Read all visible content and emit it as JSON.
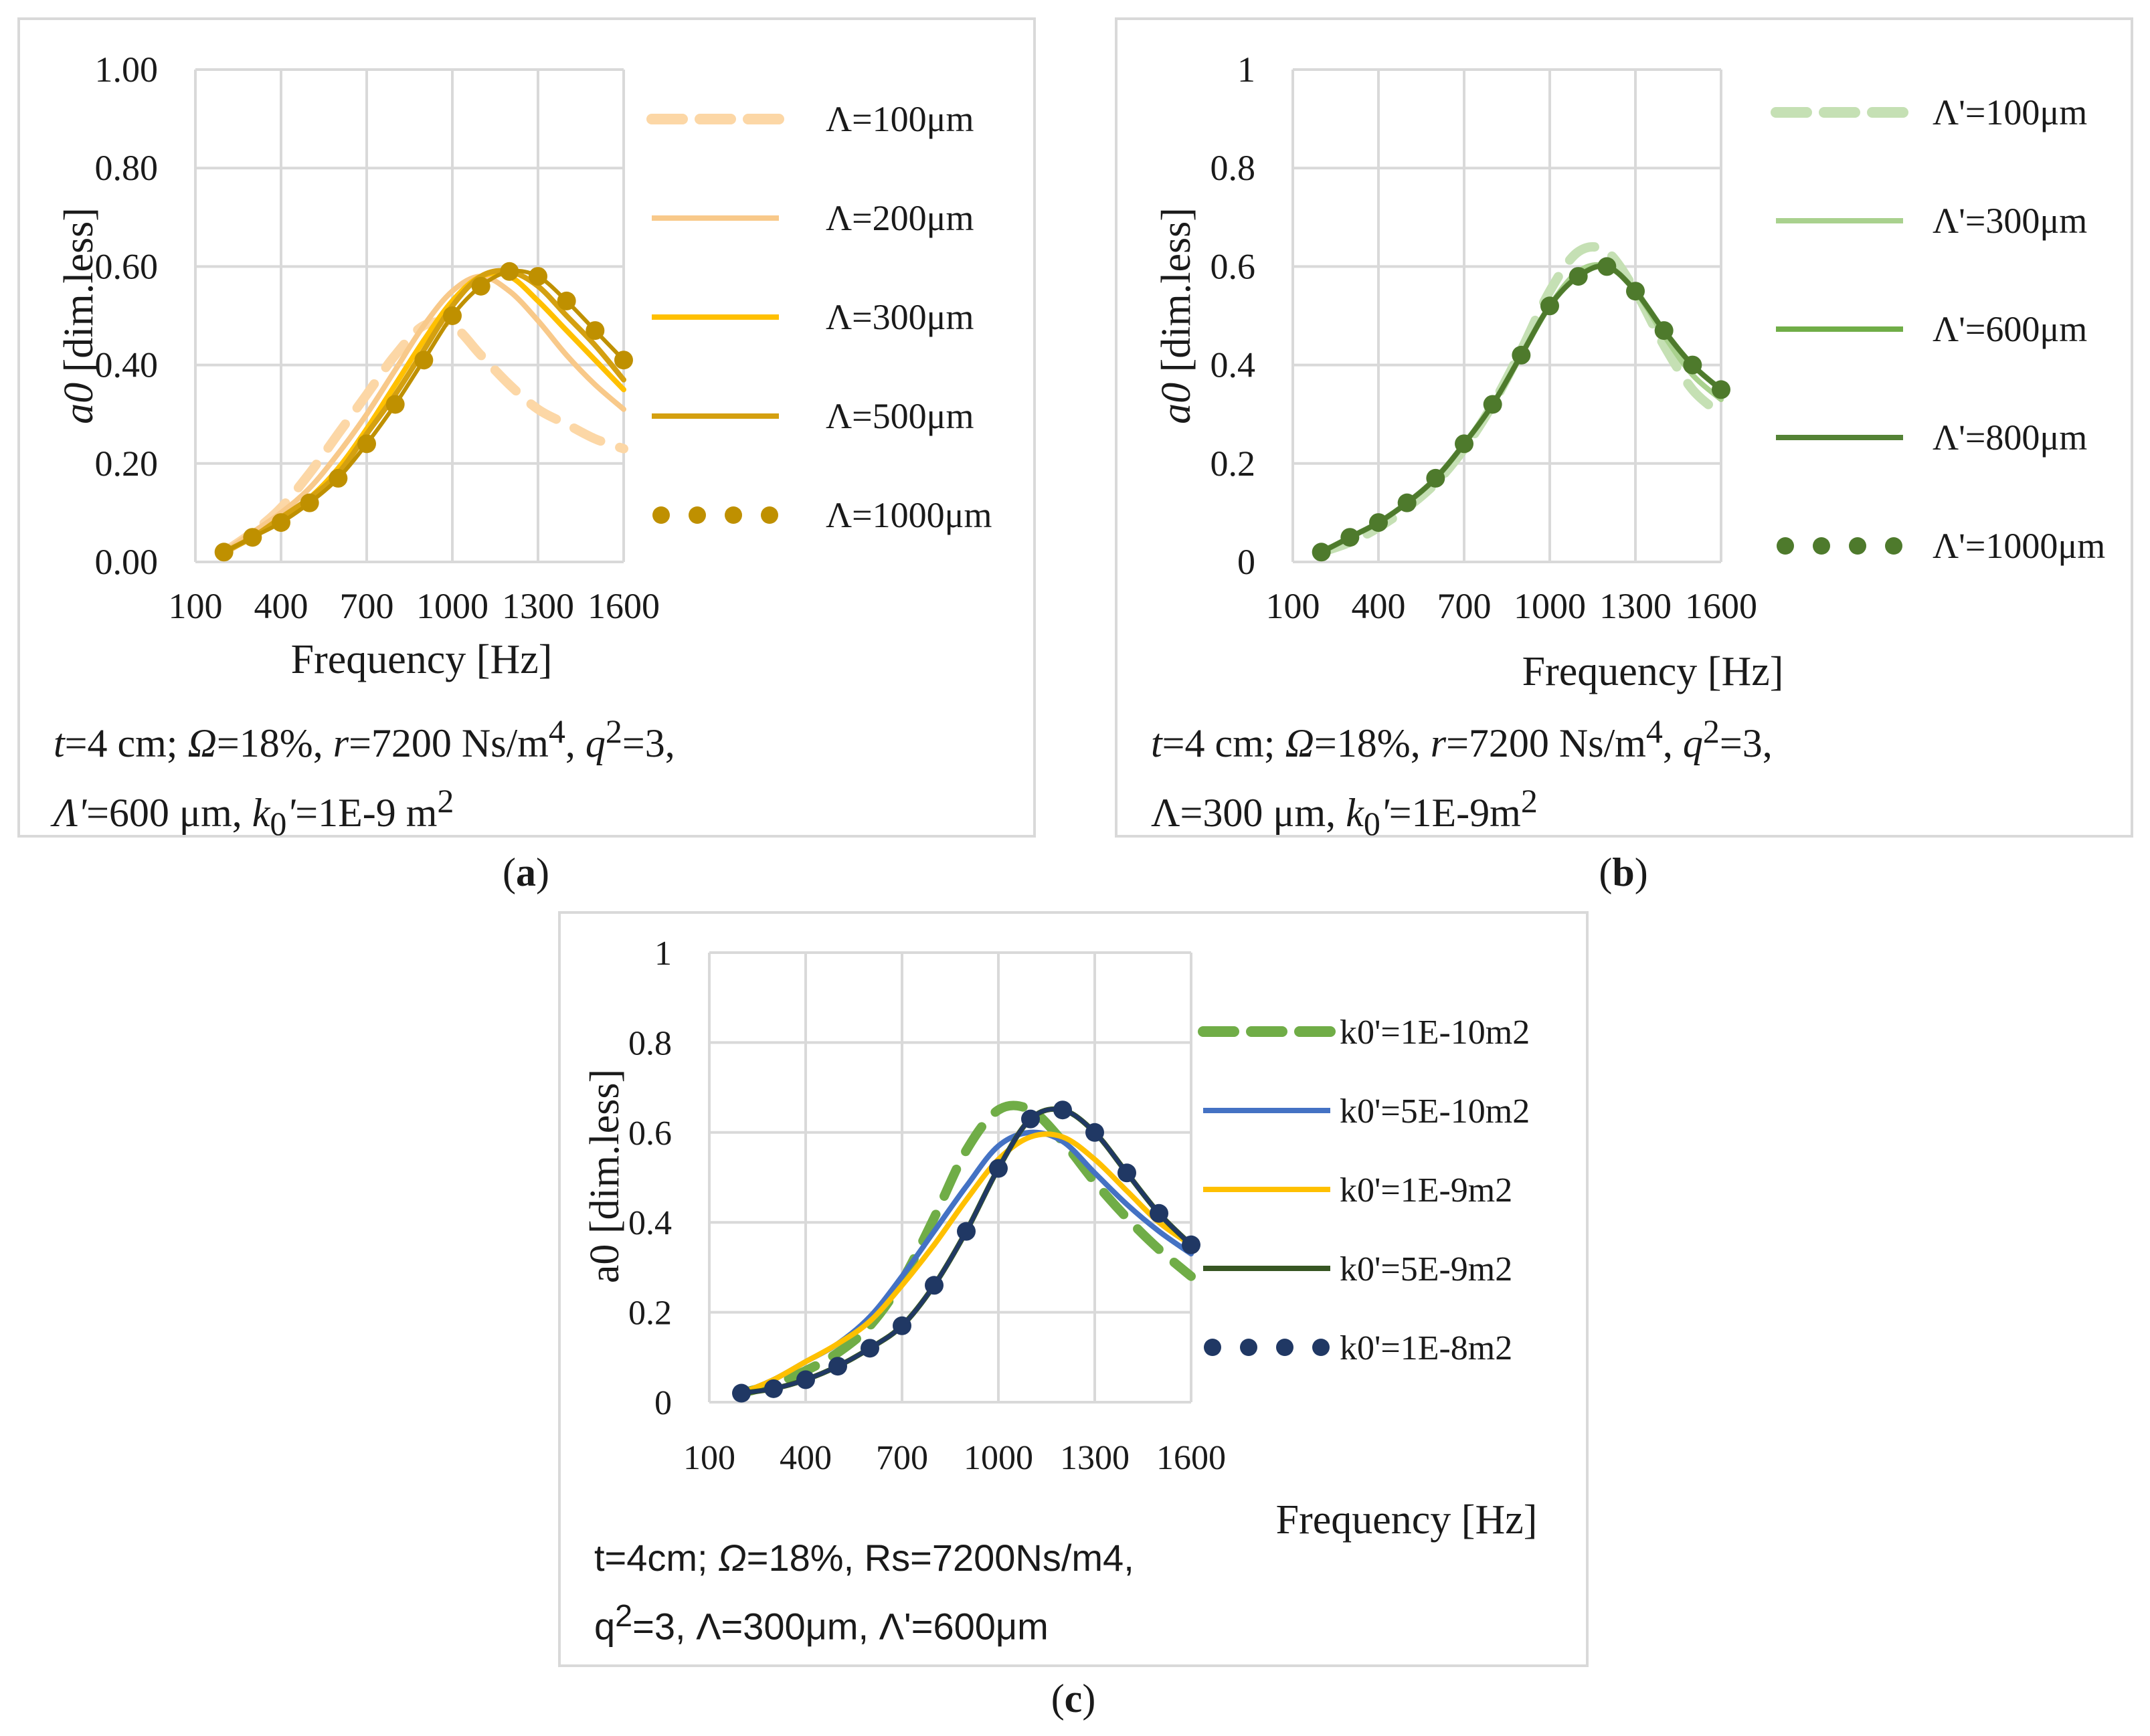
{
  "figure": {
    "labels": {
      "a": "a",
      "b": "b",
      "c": "c"
    }
  },
  "chart_data": [
    {
      "id": "a",
      "type": "line",
      "xlabel": "Frequency  [Hz]",
      "ylabel": "a0 [dim.less]",
      "xlim": [
        100,
        1600
      ],
      "ylim": [
        0,
        1
      ],
      "xticks": [
        "100",
        "400",
        "700",
        "1000",
        "1300",
        "1600"
      ],
      "yticks": [
        "0.00",
        "0.20",
        "0.40",
        "0.60",
        "0.80",
        "1.00"
      ],
      "x": [
        200,
        300,
        400,
        500,
        600,
        700,
        800,
        900,
        1000,
        1100,
        1200,
        1300,
        1400,
        1500,
        1600
      ],
      "series": [
        {
          "name": "Λ=100μm",
          "color": "#fcd7a6",
          "dash": "long",
          "values": [
            0.02,
            0.06,
            0.11,
            0.18,
            0.26,
            0.34,
            0.42,
            0.48,
            0.48,
            0.42,
            0.36,
            0.31,
            0.28,
            0.25,
            0.23
          ]
        },
        {
          "name": "Λ=200μm",
          "color": "#f8c98a",
          "dash": "solid",
          "values": [
            0.02,
            0.06,
            0.1,
            0.15,
            0.22,
            0.3,
            0.39,
            0.48,
            0.55,
            0.58,
            0.55,
            0.49,
            0.42,
            0.36,
            0.31
          ]
        },
        {
          "name": "Λ=300μm",
          "color": "#ffc000",
          "dash": "solid",
          "values": [
            0.02,
            0.05,
            0.09,
            0.13,
            0.19,
            0.27,
            0.36,
            0.45,
            0.53,
            0.58,
            0.58,
            0.53,
            0.47,
            0.41,
            0.35
          ]
        },
        {
          "name": "Λ=500μm",
          "color": "#d4a010",
          "dash": "solid",
          "values": [
            0.02,
            0.05,
            0.09,
            0.13,
            0.18,
            0.26,
            0.34,
            0.43,
            0.52,
            0.58,
            0.59,
            0.56,
            0.5,
            0.44,
            0.37
          ]
        },
        {
          "name": "Λ=1000μm",
          "color": "#bf9000",
          "dash": "dots",
          "values": [
            0.02,
            0.05,
            0.08,
            0.12,
            0.17,
            0.24,
            0.32,
            0.41,
            0.5,
            0.56,
            0.59,
            0.58,
            0.53,
            0.47,
            0.41
          ]
        }
      ],
      "caption_lines": [
        [
          "t",
          "=4 cm;  ",
          "Ω",
          "=18%, ",
          "r",
          "=7200 Ns/m",
          "4",
          ", ",
          "q",
          "2",
          "=3,"
        ],
        [
          "Λ'",
          "=600 μm, ",
          "k",
          "0",
          "'",
          "=1E-9 m",
          "2"
        ]
      ]
    },
    {
      "id": "b",
      "type": "line",
      "xlabel": "Frequency  [Hz]",
      "ylabel": "a0 [dim.less]",
      "xlim": [
        100,
        1600
      ],
      "ylim": [
        0,
        1
      ],
      "xticks": [
        "100",
        "400",
        "700",
        "1000",
        "1300",
        "1600"
      ],
      "yticks": [
        "0",
        "0.2",
        "0.4",
        "0.6",
        "0.8",
        "1"
      ],
      "x": [
        200,
        300,
        400,
        500,
        600,
        700,
        800,
        900,
        1000,
        1100,
        1200,
        1300,
        1400,
        1500,
        1600
      ],
      "series": [
        {
          "name": "Λ'=100μm",
          "color": "#c5e0b4",
          "dash": "long",
          "values": [
            0.02,
            0.04,
            0.07,
            0.11,
            0.16,
            0.23,
            0.32,
            0.43,
            0.55,
            0.63,
            0.63,
            0.55,
            0.44,
            0.35,
            0.3
          ]
        },
        {
          "name": "Λ'=300μm",
          "color": "#a9d18e",
          "dash": "solid",
          "values": [
            0.02,
            0.05,
            0.08,
            0.12,
            0.17,
            0.24,
            0.32,
            0.42,
            0.52,
            0.59,
            0.6,
            0.55,
            0.46,
            0.38,
            0.33
          ]
        },
        {
          "name": "Λ'=600μm",
          "color": "#70ad47",
          "dash": "solid",
          "values": [
            0.02,
            0.05,
            0.08,
            0.12,
            0.17,
            0.24,
            0.32,
            0.42,
            0.52,
            0.58,
            0.6,
            0.55,
            0.47,
            0.4,
            0.35
          ]
        },
        {
          "name": "Λ'=800μm",
          "color": "#548235",
          "dash": "solid",
          "values": [
            0.02,
            0.05,
            0.08,
            0.12,
            0.17,
            0.24,
            0.32,
            0.42,
            0.52,
            0.58,
            0.6,
            0.55,
            0.47,
            0.4,
            0.35
          ]
        },
        {
          "name": "Λ'=1000μm",
          "color": "#4e7a2c",
          "dash": "dots",
          "values": [
            0.02,
            0.05,
            0.08,
            0.12,
            0.17,
            0.24,
            0.32,
            0.42,
            0.52,
            0.58,
            0.6,
            0.55,
            0.47,
            0.4,
            0.35
          ]
        }
      ],
      "caption_lines": [
        [
          "t",
          "=4 cm;  ",
          "Ω",
          "=18%, ",
          "r",
          "=7200 Ns/m",
          "4",
          ", ",
          "q",
          "2",
          "=3,"
        ],
        [
          "Λ=300 μm, ",
          "k",
          "0",
          "'",
          "=1E-9m",
          "2"
        ]
      ]
    },
    {
      "id": "c",
      "type": "line",
      "xlabel": "Frequency  [Hz]",
      "ylabel": "a0 [dim.less]",
      "xlim": [
        100,
        1600
      ],
      "ylim": [
        0,
        1
      ],
      "xticks": [
        "100",
        "400",
        "700",
        "1000",
        "1300",
        "1600"
      ],
      "yticks": [
        "0",
        "0.2",
        "0.4",
        "0.6",
        "0.8",
        "1"
      ],
      "x": [
        200,
        300,
        400,
        500,
        600,
        700,
        800,
        900,
        1000,
        1100,
        1200,
        1300,
        1400,
        1500,
        1600
      ],
      "series": [
        {
          "name": "k0'=1E-10m2",
          "color": "#70ad47",
          "dash": "long",
          "values": [
            0.02,
            0.04,
            0.07,
            0.11,
            0.17,
            0.27,
            0.41,
            0.56,
            0.65,
            0.65,
            0.58,
            0.49,
            0.41,
            0.34,
            0.28
          ]
        },
        {
          "name": "k0'=5E-10m2",
          "color": "#4472c4",
          "dash": "solid",
          "values": [
            0.02,
            0.05,
            0.09,
            0.13,
            0.19,
            0.28,
            0.38,
            0.48,
            0.57,
            0.6,
            0.58,
            0.51,
            0.44,
            0.38,
            0.33
          ]
        },
        {
          "name": "k0'=1E-9m2",
          "color": "#ffc000",
          "dash": "solid",
          "values": [
            0.02,
            0.05,
            0.09,
            0.13,
            0.18,
            0.26,
            0.35,
            0.45,
            0.54,
            0.59,
            0.59,
            0.54,
            0.47,
            0.4,
            0.35
          ]
        },
        {
          "name": "k0'=5E-9m2",
          "color": "#375623",
          "dash": "solid",
          "values": [
            0.02,
            0.03,
            0.05,
            0.08,
            0.12,
            0.17,
            0.26,
            0.38,
            0.52,
            0.63,
            0.65,
            0.6,
            0.51,
            0.42,
            0.35
          ]
        },
        {
          "name": "k0'=1E-8m2",
          "color": "#203864",
          "dash": "dots",
          "values": [
            0.02,
            0.03,
            0.05,
            0.08,
            0.12,
            0.17,
            0.26,
            0.38,
            0.52,
            0.63,
            0.65,
            0.6,
            0.51,
            0.42,
            0.35
          ]
        }
      ],
      "caption_lines": [
        [
          "t=4cm; ",
          "Ω",
          "=18%, Rs=7200Ns/m4,"
        ],
        [
          "q",
          "2",
          "=3, Λ=300μm, Λ'=600μm"
        ]
      ]
    }
  ]
}
